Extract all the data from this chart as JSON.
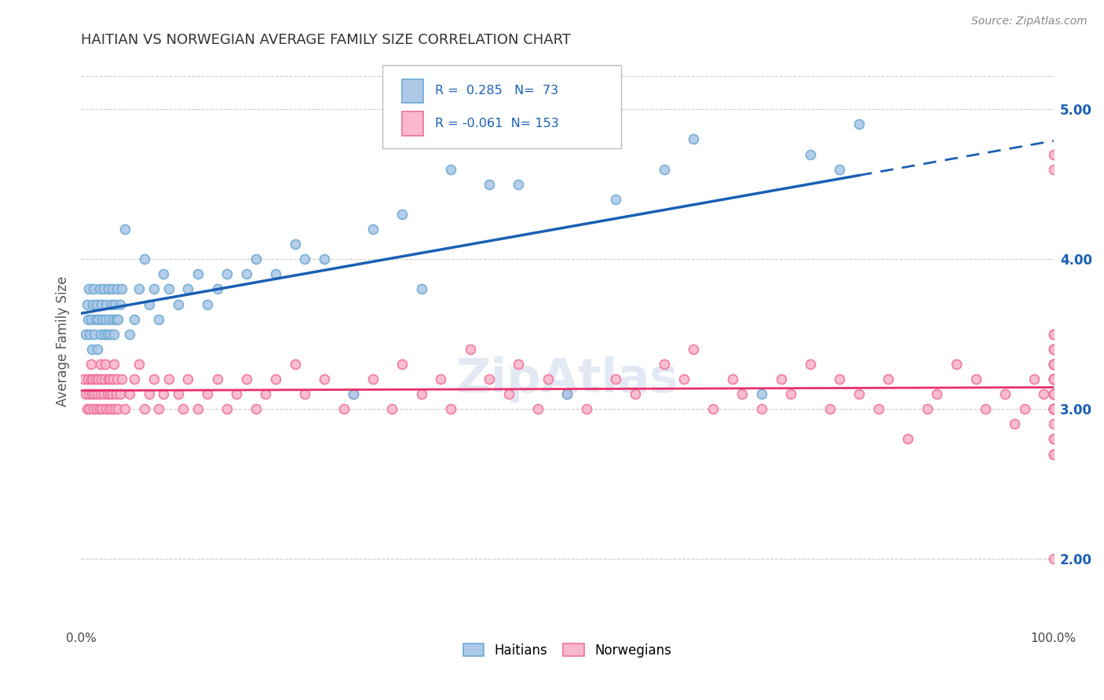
{
  "title": "HAITIAN VS NORWEGIAN AVERAGE FAMILY SIZE CORRELATION CHART",
  "source": "Source: ZipAtlas.com",
  "ylabel": "Average Family Size",
  "right_yticks": [
    2.0,
    3.0,
    4.0,
    5.0
  ],
  "xmin": 0.0,
  "xmax": 100.0,
  "ymin": 1.55,
  "ymax": 5.35,
  "haitian_R": 0.285,
  "haitian_N": 73,
  "norwegian_R": -0.061,
  "norwegian_N": 153,
  "haitian_face": "#aec9e8",
  "haitian_edge": "#6aaad4",
  "norwegian_face": "#f9b8cc",
  "norwegian_edge": "#f07098",
  "trend_blue": "#1a5fb4",
  "trend_pink": "#e8306a",
  "watermark_color": "#ccd8ec",
  "background_color": "#ffffff",
  "grid_color": "#cccccc",
  "haitian_x": [
    0.5,
    0.6,
    0.7,
    0.8,
    0.9,
    1.0,
    1.1,
    1.2,
    1.3,
    1.4,
    1.5,
    1.6,
    1.7,
    1.8,
    1.9,
    2.0,
    2.1,
    2.2,
    2.3,
    2.4,
    2.5,
    2.6,
    2.7,
    2.8,
    2.9,
    3.0,
    3.1,
    3.2,
    3.3,
    3.4,
    3.5,
    3.6,
    3.7,
    3.8,
    4.0,
    4.2,
    4.5,
    5.0,
    5.5,
    6.0,
    6.5,
    7.0,
    7.5,
    8.0,
    8.5,
    9.0,
    10.0,
    11.0,
    12.0,
    13.0,
    14.0,
    15.0,
    17.0,
    18.0,
    20.0,
    22.0,
    23.0,
    25.0,
    28.0,
    30.0,
    33.0,
    35.0,
    38.0,
    42.0,
    45.0,
    50.0,
    55.0,
    60.0,
    63.0,
    70.0,
    75.0,
    78.0,
    80.0
  ],
  "haitian_y": [
    3.5,
    3.7,
    3.6,
    3.8,
    3.5,
    3.6,
    3.4,
    3.7,
    3.8,
    3.5,
    3.6,
    3.7,
    3.4,
    3.6,
    3.8,
    3.5,
    3.7,
    3.6,
    3.8,
    3.5,
    3.6,
    3.7,
    3.5,
    3.8,
    3.6,
    3.5,
    3.7,
    3.8,
    3.6,
    3.5,
    3.7,
    3.6,
    3.8,
    3.6,
    3.7,
    3.8,
    4.2,
    3.5,
    3.6,
    3.8,
    4.0,
    3.7,
    3.8,
    3.6,
    3.9,
    3.8,
    3.7,
    3.8,
    3.9,
    3.7,
    3.8,
    3.9,
    3.9,
    4.0,
    3.9,
    4.1,
    4.0,
    4.0,
    3.1,
    4.2,
    4.3,
    3.8,
    4.6,
    4.5,
    4.5,
    3.1,
    4.4,
    4.6,
    4.8,
    3.1,
    4.7,
    4.6,
    4.9
  ],
  "norwegian_x": [
    0.3,
    0.5,
    0.6,
    0.7,
    0.8,
    0.9,
    1.0,
    1.0,
    1.1,
    1.2,
    1.3,
    1.4,
    1.5,
    1.6,
    1.7,
    1.8,
    1.9,
    2.0,
    2.0,
    2.1,
    2.2,
    2.3,
    2.4,
    2.5,
    2.6,
    2.7,
    2.8,
    2.9,
    3.0,
    3.0,
    3.1,
    3.2,
    3.3,
    3.4,
    3.5,
    3.6,
    3.7,
    3.8,
    4.0,
    4.2,
    4.5,
    5.0,
    5.5,
    6.0,
    6.5,
    7.0,
    7.5,
    8.0,
    8.5,
    9.0,
    10.0,
    10.5,
    11.0,
    12.0,
    13.0,
    14.0,
    15.0,
    16.0,
    17.0,
    18.0,
    19.0,
    20.0,
    22.0,
    23.0,
    25.0,
    27.0,
    28.0,
    30.0,
    32.0,
    33.0,
    35.0,
    37.0,
    38.0,
    40.0,
    42.0,
    44.0,
    45.0,
    47.0,
    48.0,
    50.0,
    52.0,
    55.0,
    57.0,
    60.0,
    62.0,
    63.0,
    65.0,
    67.0,
    68.0,
    70.0,
    72.0,
    73.0,
    75.0,
    77.0,
    78.0,
    80.0,
    82.0,
    83.0,
    85.0,
    87.0,
    88.0,
    90.0,
    92.0,
    93.0,
    95.0,
    96.0,
    97.0,
    98.0,
    99.0,
    100.0,
    100.0,
    100.0,
    100.0,
    100.0,
    100.0,
    100.0,
    100.0,
    100.0,
    100.0,
    100.0,
    100.0,
    100.0,
    100.0,
    100.0,
    100.0,
    100.0,
    100.0,
    100.0,
    100.0,
    100.0,
    100.0,
    100.0,
    100.0,
    100.0,
    100.0,
    100.0,
    100.0,
    100.0,
    100.0,
    100.0,
    100.0,
    100.0,
    100.0,
    100.0,
    100.0,
    100.0,
    100.0,
    100.0,
    100.0,
    100.0,
    100.0,
    100.0,
    100.0
  ],
  "norwegian_y": [
    3.2,
    3.1,
    3.0,
    3.2,
    3.1,
    3.0,
    3.2,
    3.3,
    3.1,
    3.2,
    3.0,
    3.1,
    3.2,
    3.0,
    3.1,
    3.2,
    3.0,
    3.1,
    3.3,
    3.2,
    3.0,
    3.1,
    3.2,
    3.3,
    3.0,
    3.1,
    3.2,
    3.0,
    3.1,
    3.2,
    3.0,
    3.1,
    3.2,
    3.3,
    3.0,
    3.1,
    3.2,
    3.0,
    3.1,
    3.2,
    3.0,
    3.1,
    3.2,
    3.3,
    3.0,
    3.1,
    3.2,
    3.0,
    3.1,
    3.2,
    3.1,
    3.0,
    3.2,
    3.0,
    3.1,
    3.2,
    3.0,
    3.1,
    3.2,
    3.0,
    3.1,
    3.2,
    3.3,
    3.1,
    3.2,
    3.0,
    3.1,
    3.2,
    3.0,
    3.3,
    3.1,
    3.2,
    3.0,
    3.4,
    3.2,
    3.1,
    3.3,
    3.0,
    3.2,
    3.1,
    3.0,
    3.2,
    3.1,
    3.3,
    3.2,
    3.4,
    3.0,
    3.2,
    3.1,
    3.0,
    3.2,
    3.1,
    3.3,
    3.0,
    3.2,
    3.1,
    3.0,
    3.2,
    2.8,
    3.0,
    3.1,
    3.3,
    3.2,
    3.0,
    3.1,
    2.9,
    3.0,
    3.2,
    3.1,
    3.0,
    3.4,
    3.3,
    2.7,
    3.2,
    3.1,
    3.0,
    4.7,
    3.2,
    3.1,
    3.4,
    3.3,
    3.0,
    3.2,
    3.5,
    3.1,
    3.0,
    3.2,
    3.0,
    4.6,
    2.8,
    3.1,
    3.5,
    3.0,
    3.3,
    3.2,
    3.1,
    3.4,
    3.0,
    2.9,
    3.2,
    3.1,
    3.3,
    3.0,
    2.8,
    3.2,
    3.1,
    2.7,
    3.0,
    3.2,
    3.1,
    3.3,
    2.7,
    2.0
  ]
}
